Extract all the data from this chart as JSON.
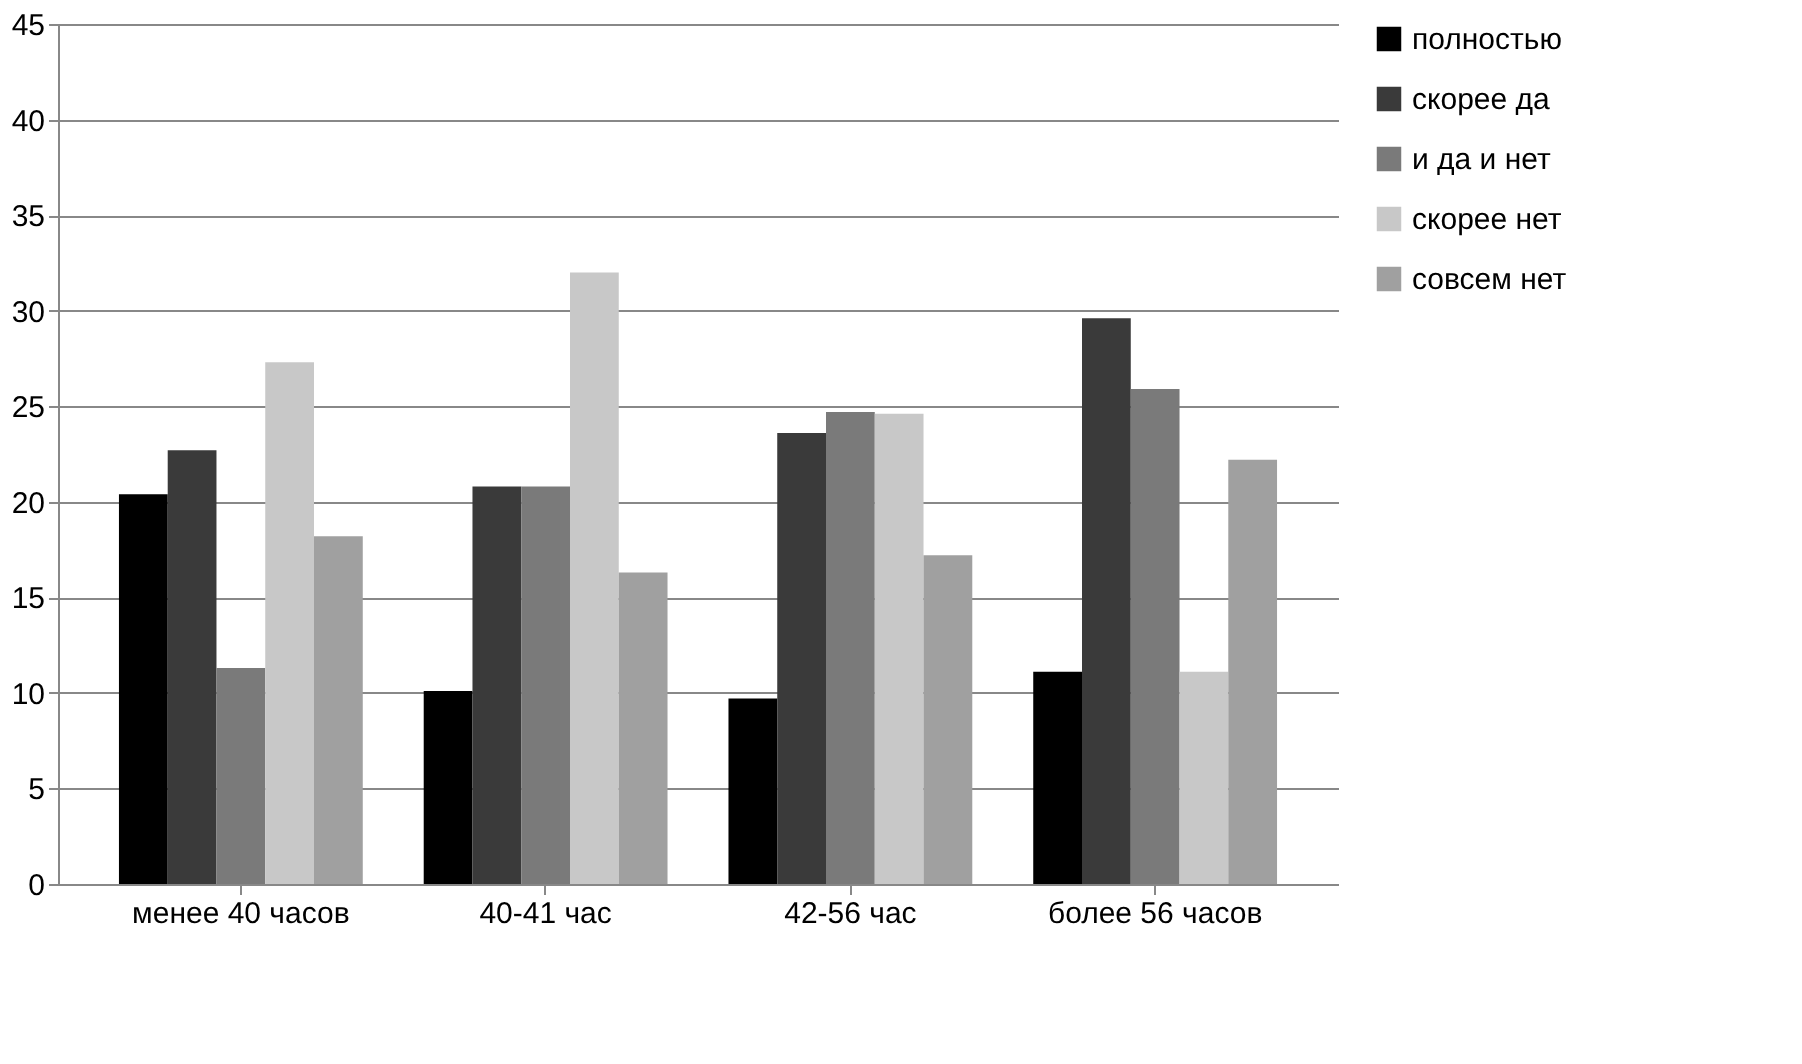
{
  "chart_data": {
    "type": "bar",
    "categories": [
      "менее 40 часов",
      "40-41 час",
      "42-56 час",
      "более 56 часов"
    ],
    "series": [
      {
        "name": "полностью",
        "color": "#000000",
        "values": [
          20.4,
          10.1,
          9.7,
          11.1
        ]
      },
      {
        "name": "скорее да",
        "color": "#3a3a3a",
        "values": [
          22.7,
          20.8,
          23.6,
          29.6
        ]
      },
      {
        "name": "и да и нет",
        "color": "#7a7a7a",
        "values": [
          11.3,
          20.8,
          24.7,
          25.9
        ]
      },
      {
        "name": "скорее нет",
        "color": "#c8c8c8",
        "values": [
          27.3,
          32.0,
          24.6,
          11.1
        ]
      },
      {
        "name": "совсем нет",
        "color": "#a0a0a0",
        "values": [
          18.2,
          16.3,
          17.2,
          22.2
        ]
      }
    ],
    "ylim": [
      0,
      45
    ],
    "yticks": [
      0,
      5,
      10,
      15,
      20,
      25,
      30,
      35,
      40,
      45
    ],
    "grid": "y",
    "legend": "right"
  }
}
